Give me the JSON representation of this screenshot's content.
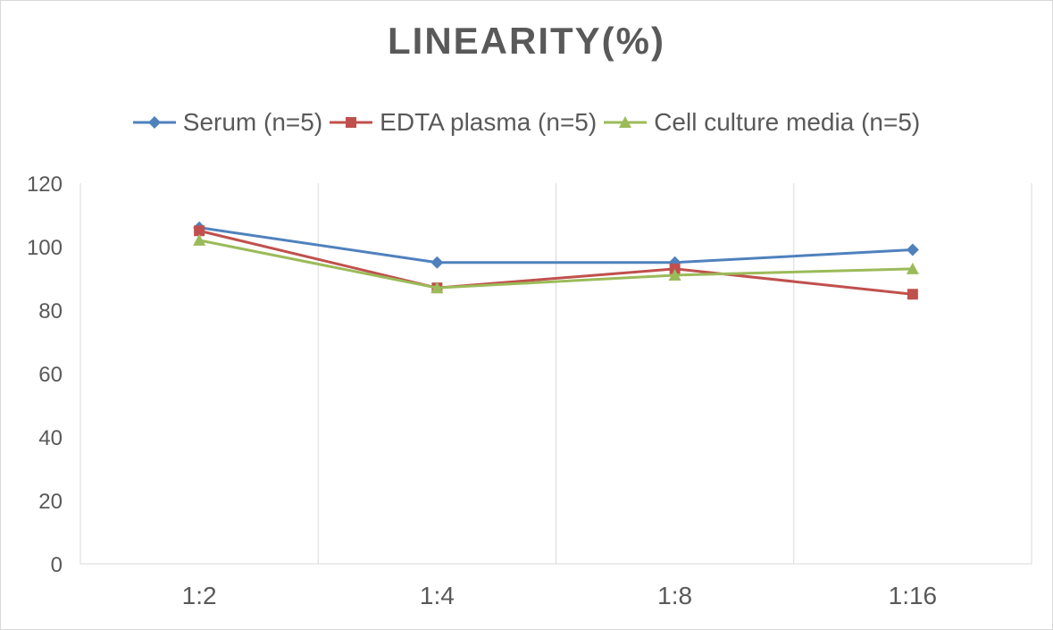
{
  "chart_data": {
    "type": "line",
    "title": "LINEARITY(%)",
    "categories": [
      "1:2",
      "1:4",
      "1:8",
      "1:16"
    ],
    "ylim": [
      0,
      120
    ],
    "yticks": [
      0,
      20,
      40,
      60,
      80,
      100,
      120
    ],
    "grid": "vertical",
    "legend_position": "top",
    "series": [
      {
        "name": "Serum (n=5)",
        "values": [
          106,
          95,
          95,
          99
        ],
        "color": "#4f81bd",
        "marker": "diamond"
      },
      {
        "name": "EDTA plasma (n=5)",
        "values": [
          105,
          87,
          93,
          85
        ],
        "color": "#c0504d",
        "marker": "square"
      },
      {
        "name": "Cell culture media (n=5)",
        "values": [
          102,
          87,
          91,
          93
        ],
        "color": "#9bbb59",
        "marker": "triangle"
      }
    ]
  }
}
